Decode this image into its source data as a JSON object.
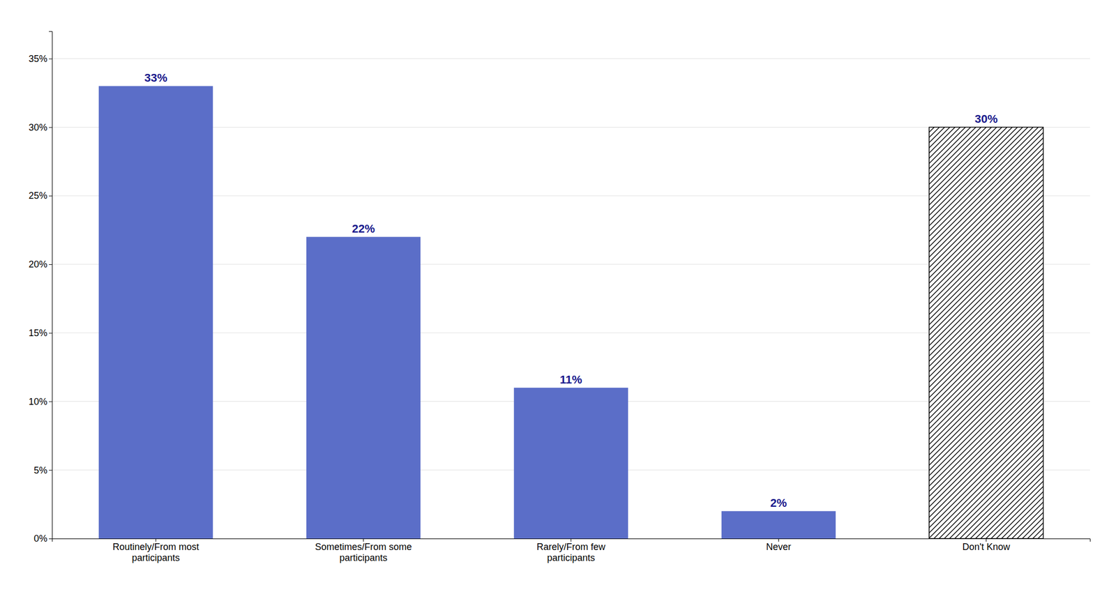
{
  "chart_data": {
    "type": "bar",
    "categories": [
      "Routinely/From most\nparticipants",
      "Sometimes/From some\nparticipants",
      "Rarely/From few\nparticipants",
      "Never",
      "Don't Know"
    ],
    "values": [
      33,
      22,
      11,
      2,
      30
    ],
    "value_labels": [
      "33%",
      "22%",
      "11%",
      "2%",
      "30%"
    ],
    "data_labels": true,
    "colors": [
      "#5B6EC8",
      "#5B6EC8",
      "#5B6EC8",
      "#5B6EC8",
      "white"
    ],
    "ylim": [
      0,
      37
    ],
    "yticks": [
      {
        "value": 0,
        "label": "0%"
      },
      {
        "value": 5,
        "label": "5%"
      },
      {
        "value": 10,
        "label": "10%"
      },
      {
        "value": 15,
        "label": "15%"
      },
      {
        "value": 20,
        "label": "20%"
      },
      {
        "value": 25,
        "label": "25%"
      },
      {
        "value": 30,
        "label": "30%"
      },
      {
        "value": 35,
        "label": "35%"
      }
    ],
    "grid": true
  }
}
